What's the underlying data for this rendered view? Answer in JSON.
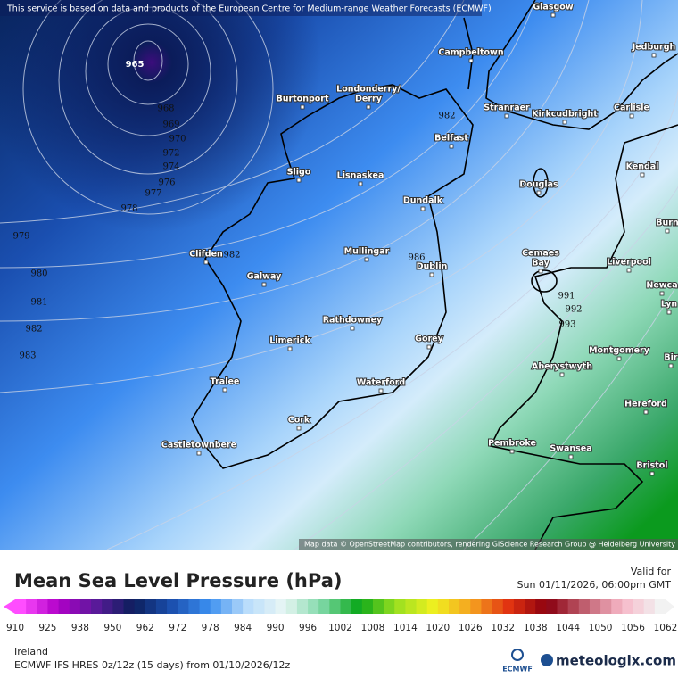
{
  "map": {
    "attribution_top": "This service is based on data and products of the European Centre for Medium-range Weather Forecasts (ECMWF)",
    "attribution_bottom": "Map data © OpenStreetMap contributors, rendering GIScience Research Group @ Heidelberg University",
    "cities": [
      "Glasgow",
      "Jedburgh",
      "Campbeltown",
      "Burtonport",
      "Londonderry/",
      "Derry",
      "Stranraer",
      "Kirkcudbright",
      "Carlisle",
      "Belfast",
      "Sligo",
      "Lisnaskea",
      "Kendal",
      "Douglas",
      "Dundalk",
      "Burn",
      "Mullingar",
      "Clifden",
      "Dublin",
      "Cemaes",
      "Bay",
      "Liverpool",
      "Newca",
      "Lyn",
      "Galway",
      "Rathdowney",
      "Limerick",
      "Gorey",
      "Montgomery",
      "Bir",
      "Aberystwyth",
      "Tralee",
      "Waterford",
      "Hereford",
      "Cork",
      "Castletownbere",
      "Pembroke",
      "Swansea",
      "Bristol"
    ],
    "isobar_labels": [
      "965",
      "968",
      "969",
      "970",
      "972",
      "974",
      "976",
      "977",
      "978",
      "979",
      "980",
      "981",
      "982",
      "983",
      "982",
      "982",
      "986",
      "991",
      "992",
      "993"
    ]
  },
  "legend": {
    "title": "Mean Sea Level Pressure (hPa)",
    "valid_label": "Valid for",
    "valid_time": "Sun 01/11/2026, 06:00pm GMT",
    "colorbar_ticks": [
      910,
      925,
      938,
      950,
      962,
      972,
      978,
      984,
      990,
      996,
      1002,
      1008,
      1014,
      1020,
      1026,
      1032,
      1038,
      1044,
      1050,
      1056,
      1062
    ]
  },
  "footer": {
    "region": "Ireland",
    "model": "ECMWF IFS HRES 0z/12z (15 days) from 01/10/2026/12z",
    "ecmwf": "ECMWF",
    "brand": "meteologix.com"
  }
}
